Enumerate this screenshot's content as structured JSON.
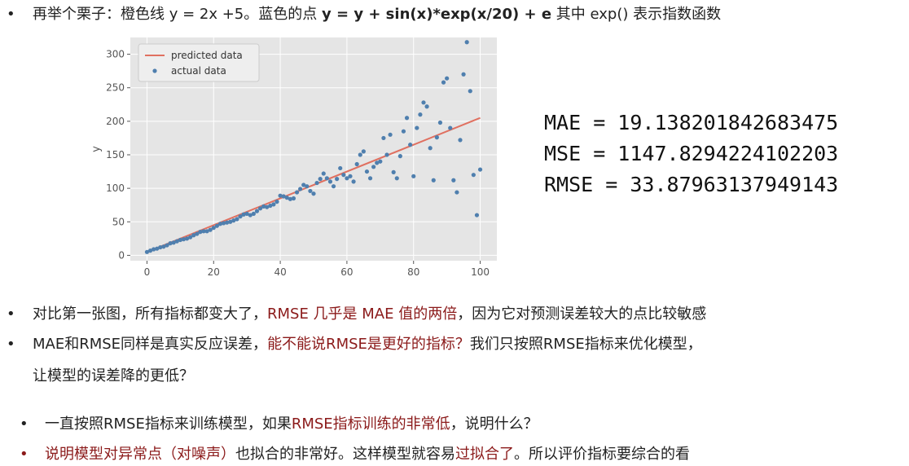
{
  "intro": {
    "part1": "再举个栗子：橙色线 y = 2x +5。蓝色的点 ",
    "formula": "y = y + sin(x)*exp(x/20) + e",
    "part2": " 其中 exp() 表示指数函数"
  },
  "metrics": {
    "mae": "MAE = 19.138201842683475",
    "mse": "MSE = 1147.8294224102203",
    "rmse": "RMSE = 33.87963137949143"
  },
  "bullets": {
    "b1_a": "对比第一张图，所有指标都变大了，",
    "b1_hl": "RMSE 几乎是 MAE 值的两倍",
    "b1_b": "，因为它对预测误差较大的点比较敏感",
    "b2_a": "MAE和RMSE同样是真实反应误差，",
    "b2_hl": "能不能说RMSE是更好的指标？",
    "b2_b": "我们只按照RMSE指标来优化模型，",
    "b2_line2": "让模型的误差降的更低？",
    "b3_a": "一直按照RMSE指标来训练模型，如果",
    "b3_hl": "RMSE指标训练的非常低",
    "b3_b": "，说明什么？",
    "b4_hl1": "说明模型对异常点（对噪声）",
    "b4_a": "也拟合的非常好。这样模型就容易",
    "b4_hl2": "过拟合了",
    "b4_b": "。所以评价指标要综合的看"
  },
  "chart_data": {
    "type": "scatter",
    "xlabel": "",
    "ylabel": "y",
    "xlim": [
      -5,
      105
    ],
    "ylim": [
      -8,
      325
    ],
    "xticks": [
      0,
      20,
      40,
      60,
      80,
      100
    ],
    "yticks": [
      0,
      50,
      100,
      150,
      200,
      250,
      300
    ],
    "grid": true,
    "legend_placement": "top-left",
    "colors": {
      "line": "#e07060",
      "points": "#4f7fae",
      "background": "#e5e5e5"
    },
    "series": [
      {
        "name": "predicted data",
        "kind": "line",
        "x": [
          0,
          100
        ],
        "y": [
          5,
          205
        ]
      },
      {
        "name": "actual data",
        "kind": "scatter",
        "x": [
          0,
          1,
          2,
          3,
          4,
          5,
          6,
          7,
          8,
          9,
          10,
          11,
          12,
          13,
          14,
          15,
          16,
          17,
          18,
          19,
          20,
          21,
          22,
          23,
          24,
          25,
          26,
          27,
          28,
          29,
          30,
          31,
          32,
          33,
          34,
          35,
          36,
          37,
          38,
          39,
          40,
          41,
          42,
          43,
          44,
          45,
          46,
          47,
          48,
          49,
          50,
          51,
          52,
          53,
          54,
          55,
          56,
          57,
          58,
          59,
          60,
          61,
          62,
          63,
          64,
          65,
          66,
          67,
          68,
          69,
          70,
          71,
          72,
          73,
          74,
          75,
          76,
          77,
          78,
          79,
          80,
          81,
          82,
          83,
          84,
          85,
          86,
          87,
          88,
          89,
          90,
          91,
          92,
          93,
          94,
          95,
          96,
          97,
          98,
          99,
          100
        ],
        "y": [
          5,
          7,
          9,
          10,
          12,
          13,
          15,
          18,
          19,
          21,
          23,
          24,
          25,
          27,
          30,
          32,
          35,
          36,
          36,
          38,
          41,
          44,
          47,
          48,
          49,
          50,
          52,
          54,
          58,
          61,
          62,
          60,
          62,
          66,
          70,
          73,
          72,
          74,
          76,
          80,
          89,
          88,
          86,
          84,
          85,
          94,
          99,
          105,
          103,
          96,
          92,
          108,
          114,
          122,
          115,
          110,
          103,
          114,
          130,
          120,
          115,
          118,
          110,
          136,
          150,
          155,
          125,
          115,
          132,
          138,
          140,
          175,
          150,
          180,
          124,
          115,
          148,
          185,
          205,
          165,
          118,
          190,
          210,
          228,
          222,
          160,
          112,
          176,
          198,
          258,
          264,
          190,
          112,
          94,
          172,
          270,
          318,
          245,
          120,
          60,
          128
        ]
      }
    ]
  }
}
